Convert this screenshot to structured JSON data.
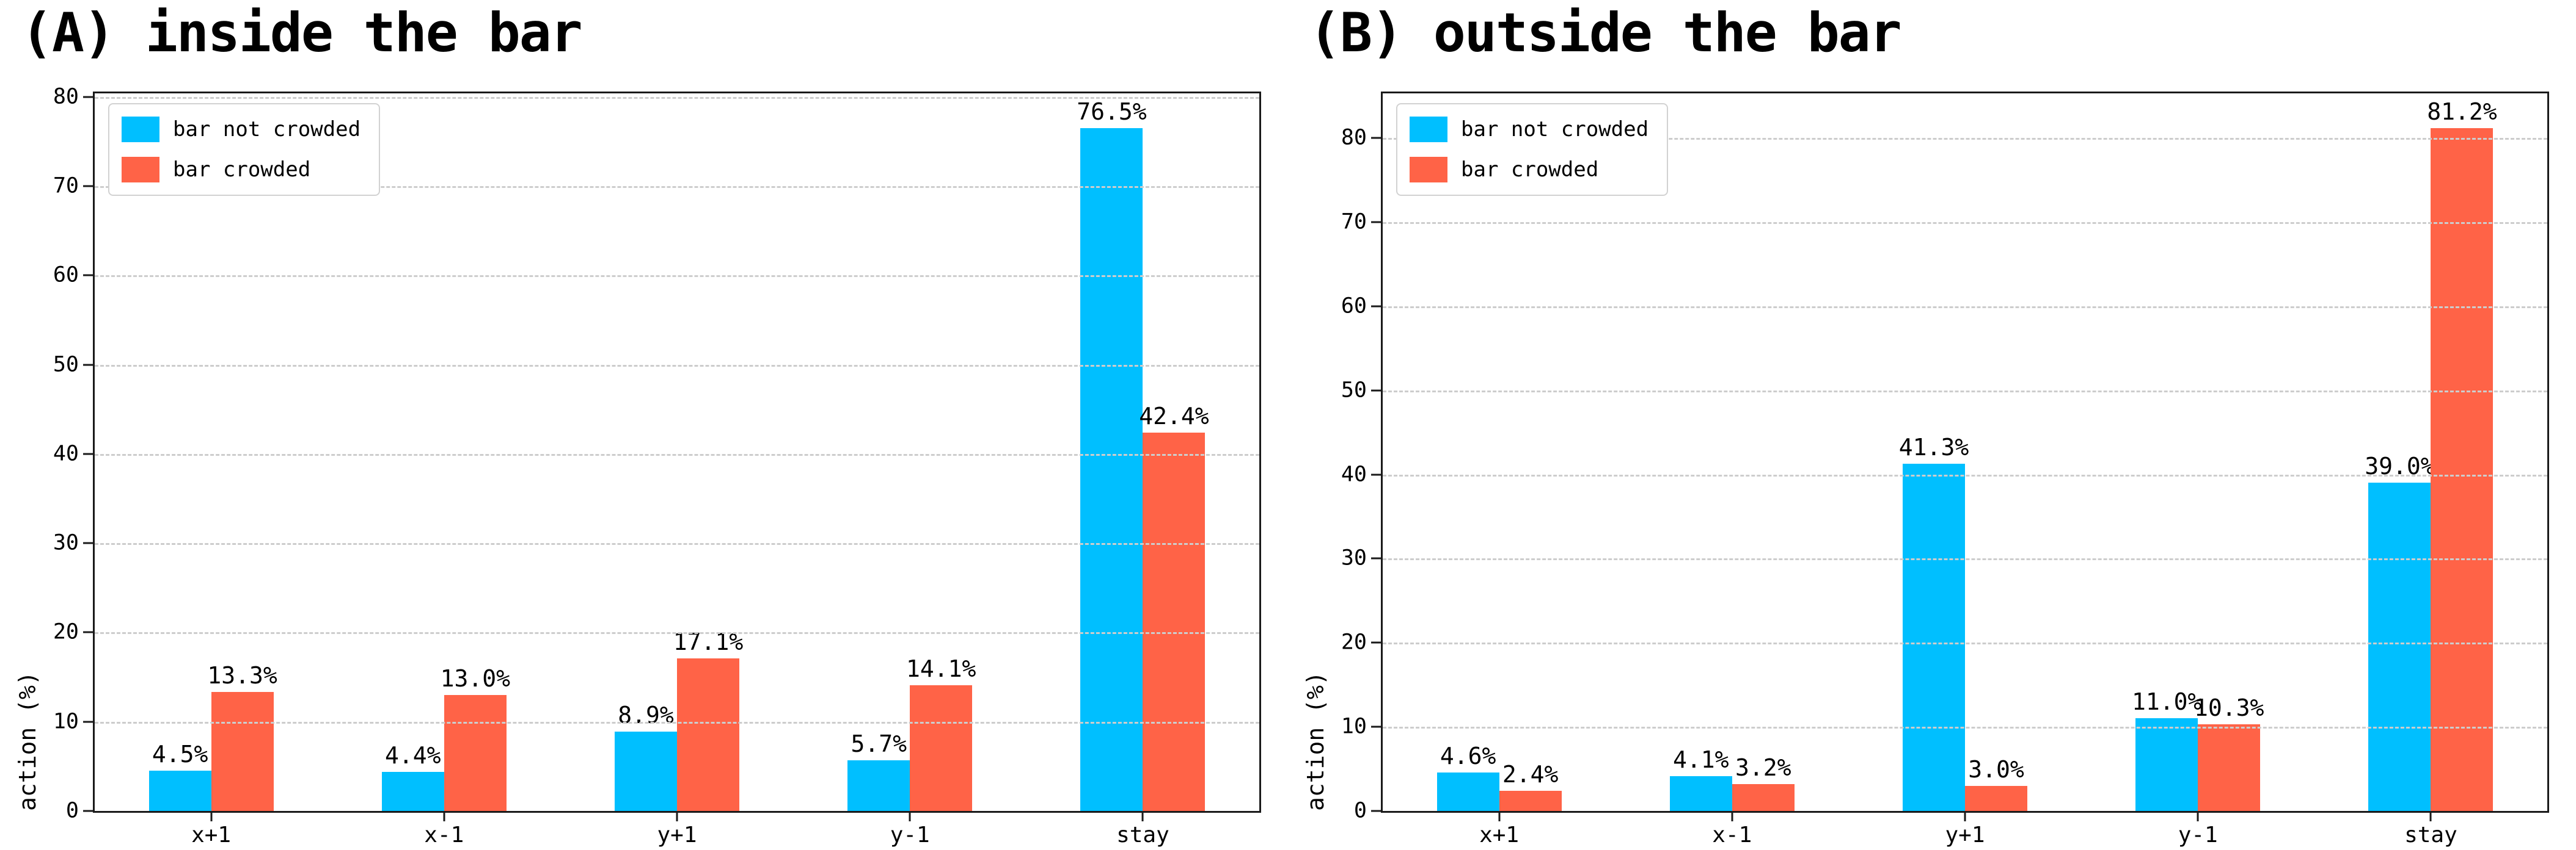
{
  "figure": {
    "background": "#ffffff",
    "accent_blue": "#00BFFF",
    "accent_red": "#FF6347"
  },
  "chart_data": [
    {
      "type": "bar",
      "title": "(A) inside the bar",
      "ylabel": "action (%)",
      "categories": [
        "x+1",
        "x-1",
        "y+1",
        "y-1",
        "stay"
      ],
      "series": [
        {
          "name": "bar not crowded",
          "color": "#00BFFF",
          "values": [
            4.5,
            4.4,
            8.9,
            5.7,
            76.5
          ],
          "labels": [
            "4.5%",
            "4.4%",
            "8.9%",
            "5.7%",
            "76.5%"
          ]
        },
        {
          "name": "bar crowded",
          "color": "#FF6347",
          "values": [
            13.3,
            13.0,
            17.1,
            14.1,
            42.4
          ],
          "labels": [
            "13.3%",
            "13.0%",
            "17.1%",
            "14.1%",
            "42.4%"
          ]
        }
      ],
      "yticks": [
        0,
        10,
        20,
        30,
        40,
        50,
        60,
        70,
        80
      ],
      "ytick_labels": [
        "0",
        "10",
        "20",
        "30",
        "40",
        "50",
        "60",
        "70",
        "80"
      ],
      "ylim": [
        0,
        80.4
      ],
      "grid": "horizontal-dashed",
      "legend_position": "upper left"
    },
    {
      "type": "bar",
      "title": "(B) outside the bar",
      "ylabel": "action (%)",
      "categories": [
        "x+1",
        "x-1",
        "y+1",
        "y-1",
        "stay"
      ],
      "series": [
        {
          "name": "bar not crowded",
          "color": "#00BFFF",
          "values": [
            4.6,
            4.1,
            41.3,
            11.0,
            39.0
          ],
          "labels": [
            "4.6%",
            "4.1%",
            "41.3%",
            "11.0%",
            "39.0%"
          ]
        },
        {
          "name": "bar crowded",
          "color": "#FF6347",
          "values": [
            2.4,
            3.2,
            3.0,
            10.3,
            81.2
          ],
          "labels": [
            "2.4%",
            "3.2%",
            "3.0%",
            "10.3%",
            "81.2%"
          ]
        }
      ],
      "yticks": [
        0,
        10,
        20,
        30,
        40,
        50,
        60,
        70,
        80
      ],
      "ytick_labels": [
        "0",
        "10",
        "20",
        "30",
        "40",
        "50",
        "60",
        "70",
        "80"
      ],
      "ylim": [
        0,
        85.3
      ],
      "grid": "horizontal-dashed",
      "legend_position": "upper left"
    }
  ]
}
